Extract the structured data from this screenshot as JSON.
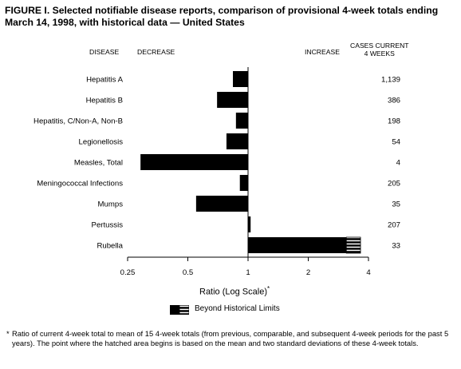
{
  "figure": {
    "title": "FIGURE I. Selected notifiable disease reports, comparison of provisional 4-week totals ending March 14, 1998, with historical data — United States",
    "header_disease": "DISEASE",
    "header_decrease": "DECREASE",
    "header_increase": "INCREASE",
    "header_cases": "CASES CURRENT\n4 WEEKS",
    "axis_title": "Ratio (Log Scale)",
    "axis_title_mark": "*",
    "legend_label": "Beyond Historical Limits",
    "footnote_mark": "*",
    "footnote": "Ratio of current 4-week total to mean of 15 4-week totals (from previous, comparable, and subsequent 4-week periods for the past 5 years). The point where the hatched area begins is based on the mean and two standard deviations of these 4-week totals."
  },
  "chart_data": {
    "type": "bar",
    "orientation": "horizontal",
    "scale": "log",
    "baseline": 1,
    "xlim": [
      0.25,
      4
    ],
    "tick_labels": [
      "0.25",
      "0.5",
      "1",
      "2",
      "4"
    ],
    "tick_values": [
      0.25,
      0.5,
      1,
      2,
      4
    ],
    "categories": [
      "Hepatitis A",
      "Hepatitis B",
      "Hepatitis, C/Non-A, Non-B",
      "Legionellosis",
      "Measles, Total",
      "Meningococcal Infections",
      "Mumps",
      "Pertussis",
      "Rubella"
    ],
    "values": [
      0.84,
      0.7,
      0.87,
      0.78,
      0.29,
      0.91,
      0.55,
      1.03,
      3.65
    ],
    "cases_current_4_weeks": [
      "1,139",
      "386",
      "198",
      "54",
      "4",
      "205",
      "35",
      "207",
      "33"
    ],
    "beyond_historical_limits_from": [
      null,
      null,
      null,
      null,
      null,
      null,
      null,
      null,
      3.1
    ],
    "colors": {
      "bar": "#000000",
      "hatch": "#ffffff"
    }
  }
}
